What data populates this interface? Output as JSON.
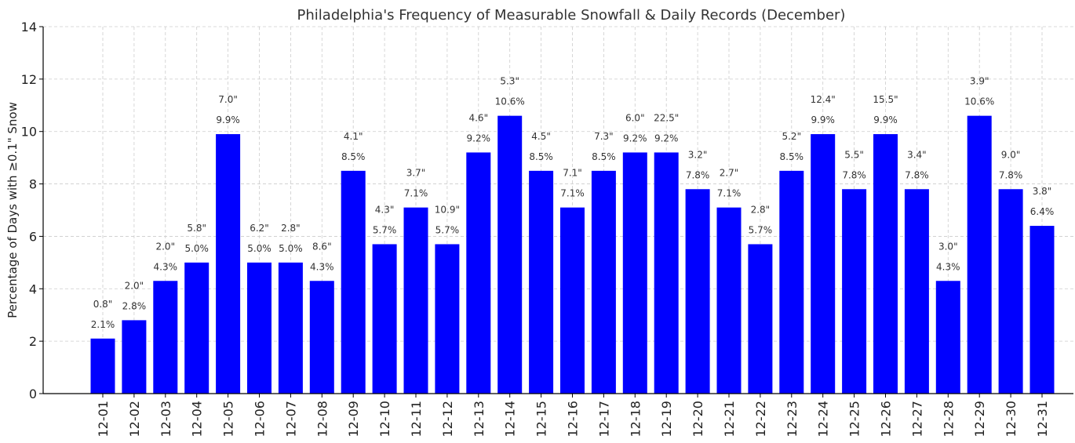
{
  "chart_data": {
    "type": "bar",
    "title": "Philadelphia's Frequency of Measurable Snowfall & Daily Records (December)",
    "xlabel": "",
    "ylabel": "Percentage of Days with ≥0.1\" Snow",
    "ylim": [
      0,
      14
    ],
    "yticks": [
      0,
      2,
      4,
      6,
      8,
      10,
      12,
      14
    ],
    "grid": true,
    "bar_color": "#0000ff",
    "categories": [
      "12-01",
      "12-02",
      "12-03",
      "12-04",
      "12-05",
      "12-06",
      "12-07",
      "12-08",
      "12-09",
      "12-10",
      "12-11",
      "12-12",
      "12-13",
      "12-14",
      "12-15",
      "12-16",
      "12-17",
      "12-18",
      "12-19",
      "12-20",
      "12-21",
      "12-22",
      "12-23",
      "12-24",
      "12-25",
      "12-26",
      "12-27",
      "12-28",
      "12-29",
      "12-30",
      "12-31"
    ],
    "values": [
      2.1,
      2.8,
      4.3,
      5.0,
      9.9,
      5.0,
      5.0,
      4.3,
      8.5,
      5.7,
      7.1,
      5.7,
      9.2,
      10.6,
      8.5,
      7.1,
      8.5,
      9.2,
      9.2,
      7.8,
      7.1,
      5.7,
      8.5,
      9.9,
      7.8,
      9.9,
      7.8,
      4.3,
      10.6,
      7.8,
      6.4
    ],
    "value_labels": [
      "2.1%",
      "2.8%",
      "4.3%",
      "5.0%",
      "9.9%",
      "5.0%",
      "5.0%",
      "4.3%",
      "8.5%",
      "5.7%",
      "7.1%",
      "5.7%",
      "9.2%",
      "10.6%",
      "8.5%",
      "7.1%",
      "8.5%",
      "9.2%",
      "9.2%",
      "7.8%",
      "7.1%",
      "5.7%",
      "8.5%",
      "9.9%",
      "7.8%",
      "9.9%",
      "7.8%",
      "4.3%",
      "10.6%",
      "7.8%",
      "6.4%"
    ],
    "record_labels": [
      "0.8\"",
      "2.0\"",
      "2.0\"",
      "5.8\"",
      "7.0\"",
      "6.2\"",
      "2.8\"",
      "8.6\"",
      "4.1\"",
      "4.3\"",
      "3.7\"",
      "10.9\"",
      "4.6\"",
      "5.3\"",
      "4.5\"",
      "7.1\"",
      "7.3\"",
      "6.0\"",
      "22.5\"",
      "3.2\"",
      "2.7\"",
      "2.8\"",
      "5.2\"",
      "12.4\"",
      "5.5\"",
      "15.5\"",
      "3.4\"",
      "3.0\"",
      "3.9\"",
      "9.0\"",
      "3.8\""
    ]
  }
}
